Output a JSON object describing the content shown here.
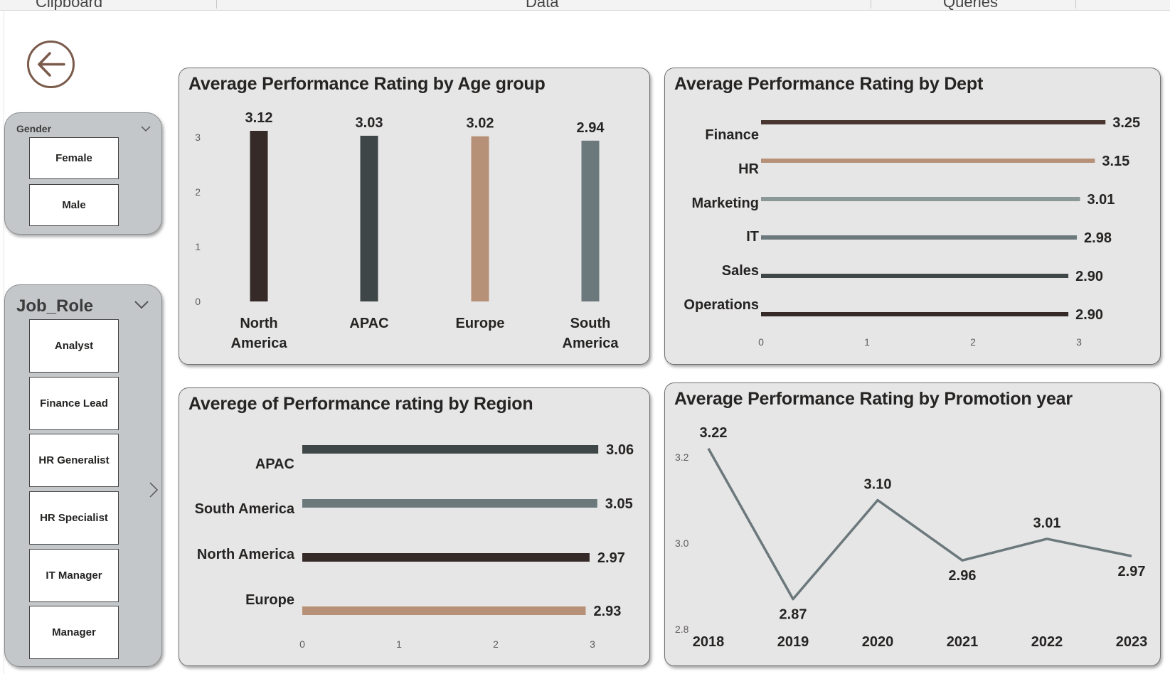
{
  "ribbon": {
    "groups": [
      "Clipboard",
      "Data",
      "Queries"
    ]
  },
  "nav": {
    "back_icon": "arrow-left-circle-icon"
  },
  "gender_slicer": {
    "title": "Gender",
    "items": [
      "Female",
      "Male"
    ]
  },
  "job_role_slicer": {
    "title": "Job_Role",
    "items": [
      "Analyst",
      "Finance Lead",
      "HR Generalist",
      "HR Specialist",
      "IT Manager",
      "Manager"
    ]
  },
  "colors": {
    "dark": "#352a28",
    "charcoal": "#3f4647",
    "tan": "#b69177",
    "slate": "#6b787c",
    "lightslate": "#8a9897",
    "card_bg": "#e7e6e6",
    "slicer_bg": "#c4c7c9",
    "accent": "#7a5b4b"
  },
  "charts": {
    "age": {
      "title": "Average Performance Rating by Age group"
    },
    "dept": {
      "title": "Average Performance Rating by Dept"
    },
    "region": {
      "title": "Averege of Performance rating by Region"
    },
    "promo": {
      "title": "Average Performance Rating by Promotion year"
    }
  },
  "chart_data": [
    {
      "type": "bar",
      "title": "Average Performance Rating by Age group",
      "categories": [
        "North America",
        "APAC",
        "Europe",
        "South America"
      ],
      "values": [
        3.12,
        3.03,
        3.02,
        2.94
      ],
      "labels": [
        "3.12",
        "3.03",
        "3.02",
        "2.94"
      ],
      "colors": [
        "#352a28",
        "#3f4647",
        "#b69177",
        "#6b787c"
      ],
      "ylim": [
        0,
        3.12
      ],
      "yticks": [
        0,
        1,
        2,
        3
      ]
    },
    {
      "type": "bar",
      "orientation": "horizontal",
      "title": "Average Performance Rating by Dept",
      "categories": [
        "Finance",
        "HR",
        "Marketing",
        "IT",
        "Sales",
        "Operations"
      ],
      "values": [
        3.25,
        3.15,
        3.01,
        2.98,
        2.9,
        2.9
      ],
      "labels": [
        "3.25",
        "3.15",
        "3.01",
        "2.98",
        "2.90",
        "2.90"
      ],
      "colors": [
        "#4a3630",
        "#b69177",
        "#8a9897",
        "#6b787c",
        "#3f4647",
        "#352a28"
      ],
      "xticks": [
        0,
        1,
        2,
        3
      ]
    },
    {
      "type": "bar",
      "orientation": "horizontal",
      "title": "Averege of Performance rating by Region",
      "categories": [
        "APAC",
        "South America",
        "North America",
        "Europe"
      ],
      "values": [
        3.06,
        3.05,
        2.97,
        2.93
      ],
      "labels": [
        "3.06",
        "3.05",
        "2.97",
        "2.93"
      ],
      "colors": [
        "#3f4647",
        "#6b787c",
        "#352a28",
        "#b69177"
      ],
      "xticks": [
        0,
        1,
        2,
        3
      ]
    },
    {
      "type": "line",
      "title": "Average Performance Rating by Promotion year",
      "x": [
        "2018",
        "2019",
        "2020",
        "2021",
        "2022",
        "2023"
      ],
      "values": [
        3.22,
        2.87,
        3.1,
        2.96,
        3.01,
        2.97
      ],
      "labels": [
        "3.22",
        "2.87",
        "3.10",
        "2.96",
        "3.01",
        "2.97"
      ],
      "color": "#6b787c",
      "ylim": [
        2.8,
        3.2
      ],
      "yticks": [
        "2.8",
        "3.0",
        "3.2"
      ]
    }
  ]
}
